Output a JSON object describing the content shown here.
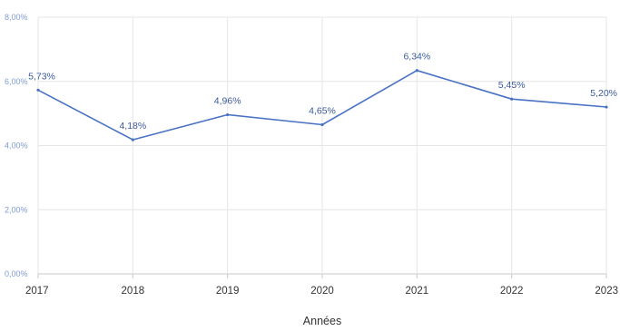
{
  "chart_data": {
    "type": "line",
    "title": "",
    "xlabel": "Années",
    "ylabel": "",
    "categories": [
      "2017",
      "2018",
      "2019",
      "2020",
      "2021",
      "2022",
      "2023"
    ],
    "series": [
      {
        "values": [
          5.73,
          4.18,
          4.96,
          4.65,
          6.34,
          5.45,
          5.2
        ],
        "labels": [
          "5,73%",
          "4,18%",
          "4,96%",
          "4,65%",
          "6,34%",
          "5,45%",
          "5,20%"
        ]
      }
    ],
    "ylim": [
      0,
      8
    ],
    "yticks": [
      0,
      2,
      4,
      6,
      8
    ],
    "ytick_labels": [
      "0,00%",
      "2,00%",
      "4,00%",
      "6,00%",
      "8,00%"
    ],
    "grid": true,
    "colors": {
      "line": "#4a72c4",
      "point_label": "#3b5a9a",
      "ytick": "#7f9bd3",
      "xtick": "#333333",
      "grid": "#e6e6e6",
      "axis": "#c8c8c8",
      "xlabel": "#333333"
    }
  }
}
